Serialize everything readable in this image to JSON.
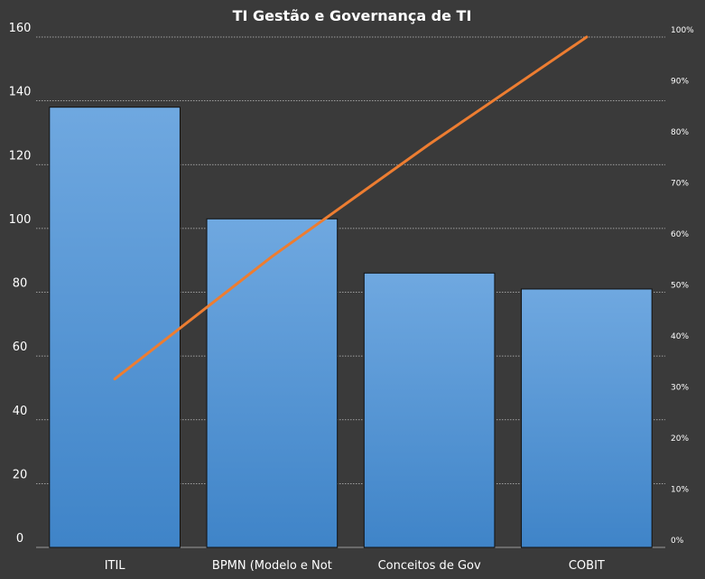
{
  "chart_data": {
    "type": "bar",
    "title": "TI Gestão  e Governança de TI",
    "categories": [
      "ITIL",
      "BPMN (Modelo e Not",
      "Conceitos de Gov",
      "COBIT"
    ],
    "series": [
      {
        "values": [
          138,
          103,
          86,
          81
        ],
        "axis": "left",
        "kind": "bar"
      },
      {
        "values": [
          33,
          57,
          79,
          100
        ],
        "axis": "right",
        "kind": "line",
        "unit": "%"
      }
    ],
    "ylim": [
      0,
      160
    ],
    "yticks": [
      "0",
      "20",
      "40",
      "60",
      "80",
      "100",
      "120",
      "140",
      "160"
    ],
    "y2lim": [
      0,
      100
    ],
    "y2ticks": [
      "0%",
      "10%",
      "20%",
      "30%",
      "40%",
      "50%",
      "60%",
      "70%",
      "80%",
      "90%",
      "100%"
    ],
    "grid": true,
    "legend": "none",
    "colors": {
      "background": "#3a3a3a",
      "bar_top": "#6fa8e0",
      "bar_bottom": "#3f84c8",
      "bar_stroke": "#111111",
      "line": "#ed7d31",
      "grid": "#bfbfbf",
      "text": "#ffffff"
    }
  }
}
